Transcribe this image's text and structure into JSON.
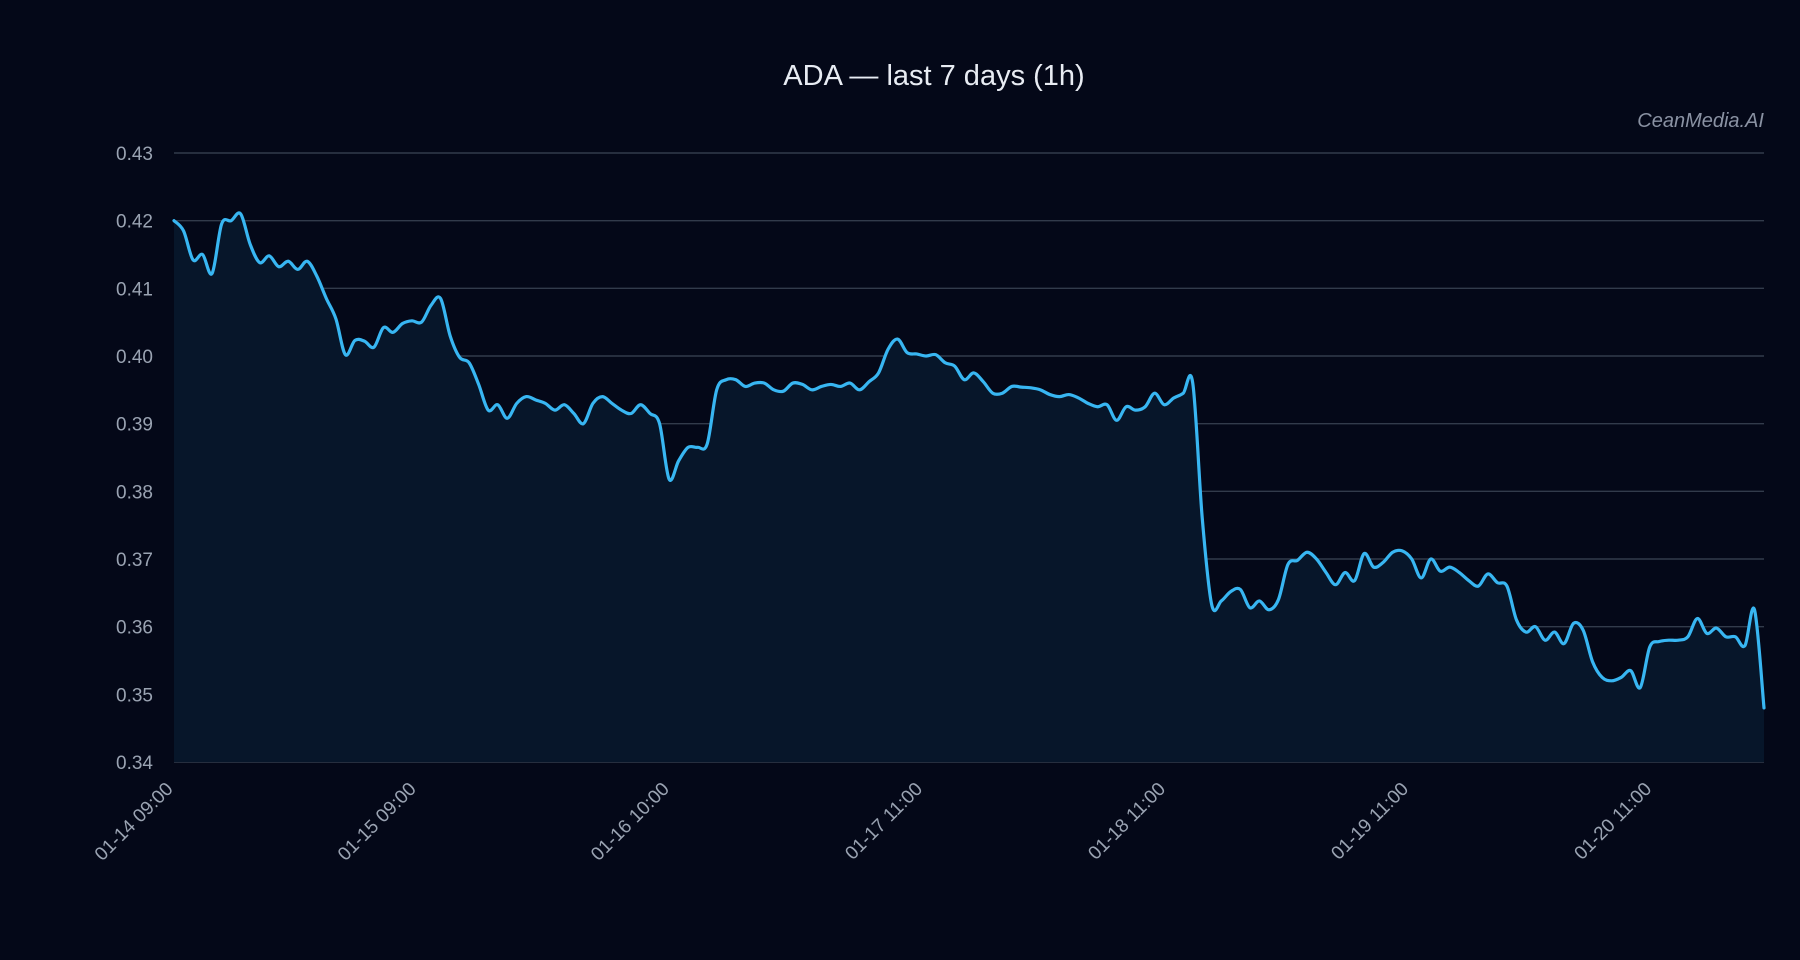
{
  "chart_data": {
    "type": "line",
    "title": "ADA — last 7 days (1h)",
    "watermark": "CeanMedia.AI",
    "xlabel": "",
    "ylabel": "",
    "ylim": [
      0.34,
      0.43
    ],
    "yticks": [
      0.34,
      0.35,
      0.36,
      0.37,
      0.38,
      0.39,
      0.4,
      0.41,
      0.42,
      0.43
    ],
    "ytick_labels": [
      "0.34",
      "0.35",
      "0.36",
      "0.37",
      "0.38",
      "0.39",
      "0.40",
      "0.41",
      "0.42",
      "0.43"
    ],
    "grid": true,
    "legend": "none",
    "interval": "1h",
    "x_start": "01-14 09:00",
    "x_end": "01-20 22:00",
    "xticks": [
      {
        "x": "01-14 09:00",
        "label": "01-14 09:00"
      },
      {
        "x": "01-15 09:00",
        "label": "01-15 09:00"
      },
      {
        "x": "01-16 10:00",
        "label": "01-16 10:00"
      },
      {
        "x": "01-17 11:00",
        "label": "01-17 11:00"
      },
      {
        "x": "01-18 11:00",
        "label": "01-18 11:00"
      },
      {
        "x": "01-19 11:00",
        "label": "01-19 11:00"
      },
      {
        "x": "01-20 11:00",
        "label": "01-20 11:00"
      }
    ],
    "colors": {
      "line": "#38b6f2",
      "area": "#07162a",
      "background": "#040818",
      "grid": "#323b4b"
    },
    "series": [
      {
        "values": [
          0.42,
          0.4185,
          0.4142,
          0.415,
          0.4122,
          0.4195,
          0.42,
          0.421,
          0.4165,
          0.4138,
          0.4148,
          0.4132,
          0.414,
          0.4128,
          0.414,
          0.4118,
          0.4085,
          0.4055,
          0.4002,
          0.4023,
          0.4022,
          0.4013,
          0.4042,
          0.4035,
          0.4048,
          0.4052,
          0.405,
          0.4075,
          0.4085,
          0.403,
          0.3998,
          0.399,
          0.3958,
          0.392,
          0.3928,
          0.3908,
          0.393,
          0.394,
          0.3935,
          0.393,
          0.392,
          0.3928,
          0.3915,
          0.39,
          0.393,
          0.394,
          0.393,
          0.392,
          0.3915,
          0.3928,
          0.3915,
          0.39,
          0.3818,
          0.3845,
          0.3865,
          0.3865,
          0.387,
          0.395,
          0.3965,
          0.3965,
          0.3955,
          0.396,
          0.396,
          0.395,
          0.3948,
          0.396,
          0.3958,
          0.395,
          0.3955,
          0.3958,
          0.3955,
          0.396,
          0.395,
          0.3962,
          0.3975,
          0.401,
          0.4025,
          0.4005,
          0.4003,
          0.4,
          0.4002,
          0.399,
          0.3985,
          0.3965,
          0.3975,
          0.3962,
          0.3945,
          0.3945,
          0.3955,
          0.3954,
          0.3953,
          0.395,
          0.3943,
          0.394,
          0.3943,
          0.3938,
          0.393,
          0.3925,
          0.3928,
          0.3905,
          0.3925,
          0.392,
          0.3925,
          0.3945,
          0.3928,
          0.3938,
          0.3945,
          0.396,
          0.376,
          0.3632,
          0.3638,
          0.3652,
          0.3655,
          0.3628,
          0.3638,
          0.3625,
          0.364,
          0.3692,
          0.3698,
          0.371,
          0.37,
          0.368,
          0.3662,
          0.368,
          0.3668,
          0.3708,
          0.3688,
          0.3695,
          0.371,
          0.3712,
          0.37,
          0.3672,
          0.37,
          0.3682,
          0.3688,
          0.368,
          0.3668,
          0.366,
          0.3678,
          0.3665,
          0.366,
          0.361,
          0.3592,
          0.36,
          0.358,
          0.3592,
          0.3575,
          0.3605,
          0.3595,
          0.3548,
          0.3525,
          0.352,
          0.3525,
          0.3535,
          0.351,
          0.357,
          0.3578,
          0.358,
          0.358,
          0.3585,
          0.3612,
          0.359,
          0.3598,
          0.3585,
          0.3585,
          0.3572,
          0.3625,
          0.348
        ]
      }
    ]
  }
}
